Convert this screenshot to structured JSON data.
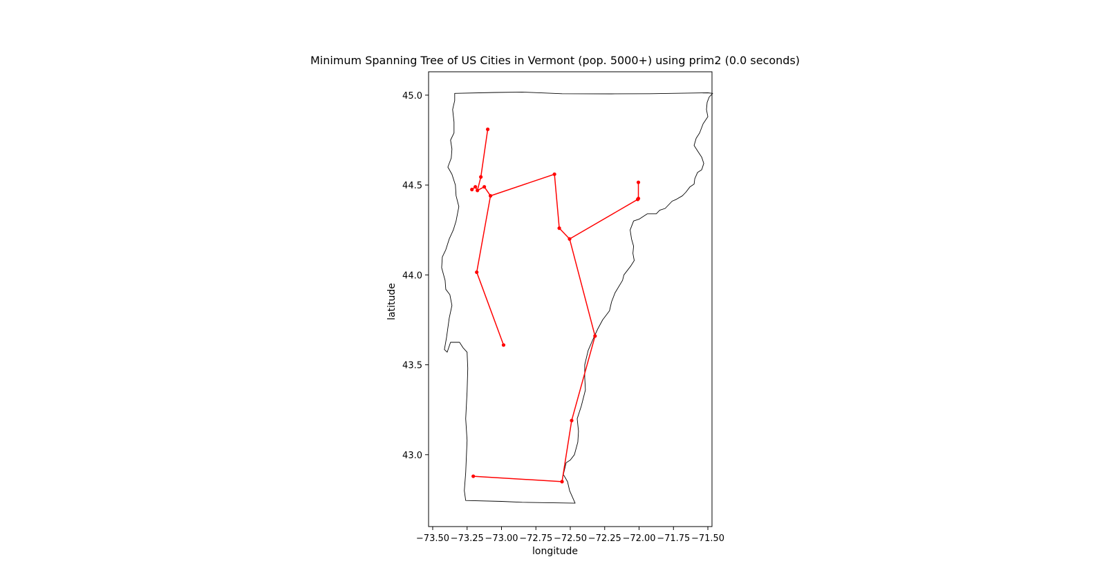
{
  "chart_data": {
    "type": "line",
    "title": "Minimum Spanning Tree of US Cities in Vermont (pop. 5000+) using prim2 (0.0 seconds)",
    "xlabel": "longitude",
    "ylabel": "latitude",
    "xlim": [
      -73.53,
      -71.47
    ],
    "ylim": [
      42.6,
      45.13
    ],
    "xticks": [
      -73.5,
      -73.25,
      -73.0,
      -72.75,
      -72.5,
      -72.25,
      -72.0,
      -71.75,
      -71.5
    ],
    "xtick_labels": [
      "−73.50",
      "−73.25",
      "−73.00",
      "−72.75",
      "−72.50",
      "−72.25",
      "−72.00",
      "−71.75",
      "−71.50"
    ],
    "yticks": [
      43.0,
      43.5,
      44.0,
      44.5,
      45.0
    ],
    "ytick_labels": [
      "43.0",
      "43.5",
      "44.0",
      "44.5",
      "45.0"
    ],
    "grid": false,
    "colors": {
      "edge": "#ff0000",
      "node": "#ff0000",
      "border": "#000000"
    },
    "cities": [
      {
        "lon": -73.1,
        "lat": 44.81
      },
      {
        "lon": -73.15,
        "lat": 44.545
      },
      {
        "lon": -73.215,
        "lat": 44.475
      },
      {
        "lon": -73.19,
        "lat": 44.49
      },
      {
        "lon": -73.175,
        "lat": 44.47
      },
      {
        "lon": -73.125,
        "lat": 44.49
      },
      {
        "lon": -73.08,
        "lat": 44.44
      },
      {
        "lon": -73.18,
        "lat": 44.015
      },
      {
        "lon": -72.985,
        "lat": 43.61
      },
      {
        "lon": -72.615,
        "lat": 44.56
      },
      {
        "lon": -72.58,
        "lat": 44.26
      },
      {
        "lon": -72.505,
        "lat": 44.2
      },
      {
        "lon": -72.01,
        "lat": 44.42
      },
      {
        "lon": -72.005,
        "lat": 44.425
      },
      {
        "lon": -72.005,
        "lat": 44.515
      },
      {
        "lon": -72.32,
        "lat": 43.66
      },
      {
        "lon": -72.49,
        "lat": 43.19
      },
      {
        "lon": -72.56,
        "lat": 42.85
      },
      {
        "lon": -73.205,
        "lat": 42.88
      }
    ],
    "edges": [
      [
        0,
        1
      ],
      [
        1,
        4
      ],
      [
        4,
        3
      ],
      [
        3,
        2
      ],
      [
        4,
        5
      ],
      [
        5,
        6
      ],
      [
        6,
        7
      ],
      [
        7,
        8
      ],
      [
        6,
        9
      ],
      [
        9,
        10
      ],
      [
        10,
        11
      ],
      [
        11,
        12
      ],
      [
        12,
        13
      ],
      [
        13,
        14
      ],
      [
        11,
        15
      ],
      [
        15,
        16
      ],
      [
        16,
        17
      ],
      [
        17,
        18
      ]
    ],
    "state_outline": [
      [
        -73.34,
        45.01
      ],
      [
        -73.05,
        45.015
      ],
      [
        -72.85,
        45.017
      ],
      [
        -72.56,
        45.008
      ],
      [
        -72.2,
        45.007
      ],
      [
        -71.92,
        45.008
      ],
      [
        -71.5,
        45.013
      ],
      [
        -71.465,
        45.01
      ],
      [
        -71.49,
        44.99
      ],
      [
        -71.505,
        44.96
      ],
      [
        -71.51,
        44.92
      ],
      [
        -71.5,
        44.88
      ],
      [
        -71.535,
        44.84
      ],
      [
        -71.56,
        44.79
      ],
      [
        -71.585,
        44.76
      ],
      [
        -71.6,
        44.72
      ],
      [
        -71.575,
        44.69
      ],
      [
        -71.545,
        44.655
      ],
      [
        -71.53,
        44.62
      ],
      [
        -71.545,
        44.585
      ],
      [
        -71.575,
        44.57
      ],
      [
        -71.595,
        44.535
      ],
      [
        -71.6,
        44.505
      ],
      [
        -71.63,
        44.49
      ],
      [
        -71.66,
        44.46
      ],
      [
        -71.685,
        44.44
      ],
      [
        -71.73,
        44.42
      ],
      [
        -71.76,
        44.41
      ],
      [
        -71.81,
        44.37
      ],
      [
        -71.85,
        44.36
      ],
      [
        -71.875,
        44.34
      ],
      [
        -71.94,
        44.34
      ],
      [
        -72.0,
        44.31
      ],
      [
        -72.04,
        44.3
      ],
      [
        -72.065,
        44.25
      ],
      [
        -72.055,
        44.2
      ],
      [
        -72.04,
        44.16
      ],
      [
        -72.045,
        44.12
      ],
      [
        -72.035,
        44.08
      ],
      [
        -72.06,
        44.05
      ],
      [
        -72.11,
        44.0
      ],
      [
        -72.12,
        43.97
      ],
      [
        -72.175,
        43.9
      ],
      [
        -72.2,
        43.85
      ],
      [
        -72.215,
        43.8
      ],
      [
        -72.265,
        43.75
      ],
      [
        -72.3,
        43.7
      ],
      [
        -72.33,
        43.65
      ],
      [
        -72.37,
        43.58
      ],
      [
        -72.395,
        43.5
      ],
      [
        -72.395,
        43.43
      ],
      [
        -72.39,
        43.36
      ],
      [
        -72.42,
        43.27
      ],
      [
        -72.45,
        43.2
      ],
      [
        -72.44,
        43.13
      ],
      [
        -72.445,
        43.07
      ],
      [
        -72.47,
        43.0
      ],
      [
        -72.5,
        42.97
      ],
      [
        -72.53,
        42.955
      ],
      [
        -72.55,
        42.89
      ],
      [
        -72.52,
        42.85
      ],
      [
        -72.505,
        42.8
      ],
      [
        -72.465,
        42.73
      ],
      [
        -72.85,
        42.735
      ],
      [
        -73.0,
        42.74
      ],
      [
        -73.26,
        42.745
      ],
      [
        -73.27,
        42.8
      ],
      [
        -73.26,
        42.9
      ],
      [
        -73.25,
        43.08
      ],
      [
        -73.26,
        43.2
      ],
      [
        -73.25,
        43.35
      ],
      [
        -73.245,
        43.48
      ],
      [
        -73.25,
        43.57
      ],
      [
        -73.28,
        43.595
      ],
      [
        -73.305,
        43.625
      ],
      [
        -73.37,
        43.625
      ],
      [
        -73.395,
        43.57
      ],
      [
        -73.415,
        43.585
      ],
      [
        -73.4,
        43.65
      ],
      [
        -73.38,
        43.76
      ],
      [
        -73.36,
        43.83
      ],
      [
        -73.375,
        43.89
      ],
      [
        -73.405,
        43.92
      ],
      [
        -73.41,
        43.97
      ],
      [
        -73.435,
        44.04
      ],
      [
        -73.43,
        44.1
      ],
      [
        -73.405,
        44.14
      ],
      [
        -73.38,
        44.2
      ],
      [
        -73.35,
        44.25
      ],
      [
        -73.33,
        44.3
      ],
      [
        -73.31,
        44.38
      ],
      [
        -73.33,
        44.44
      ],
      [
        -73.335,
        44.5
      ],
      [
        -73.36,
        44.56
      ],
      [
        -73.39,
        44.6
      ],
      [
        -73.365,
        44.65
      ],
      [
        -73.36,
        44.7
      ],
      [
        -73.37,
        44.75
      ],
      [
        -73.345,
        44.79
      ],
      [
        -73.345,
        44.85
      ],
      [
        -73.355,
        44.92
      ],
      [
        -73.34,
        44.97
      ],
      [
        -73.34,
        45.01
      ]
    ]
  }
}
